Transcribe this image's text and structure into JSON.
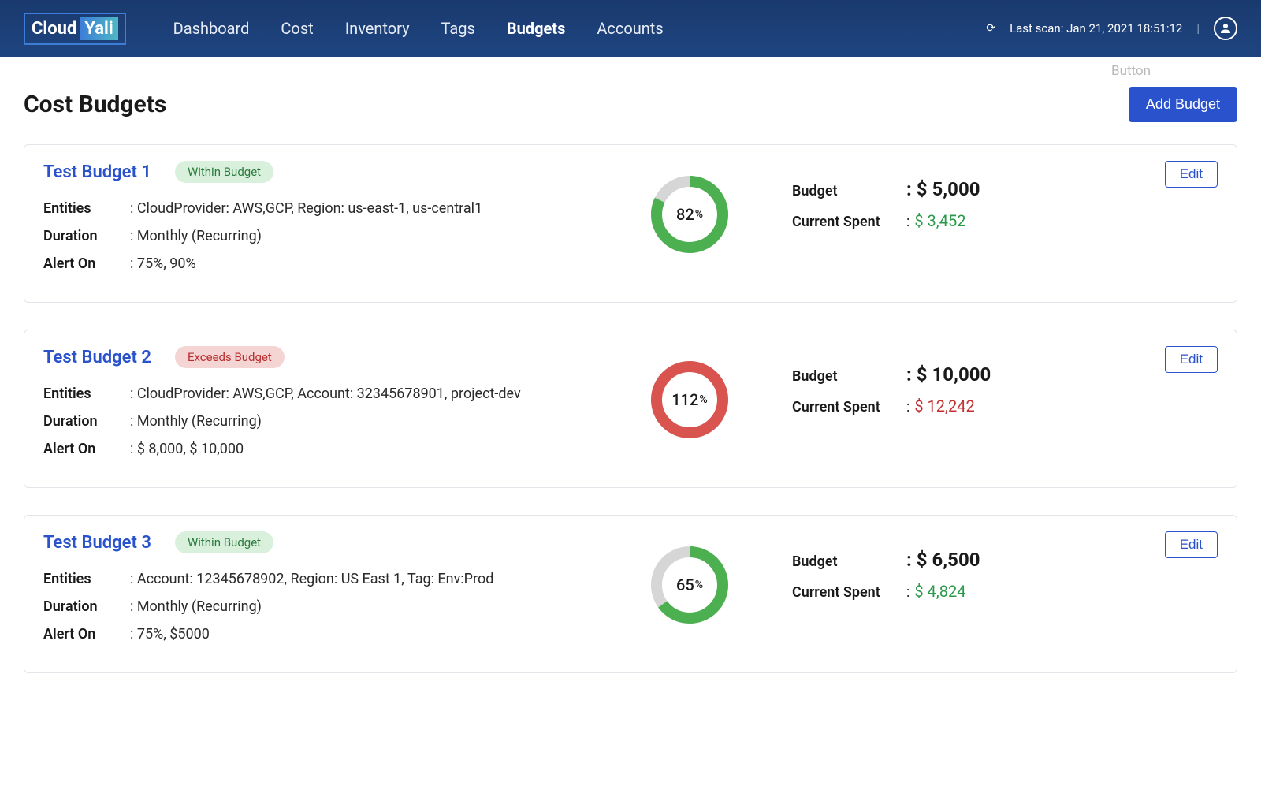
{
  "header": {
    "logo_left": "Cloud",
    "logo_right": "Yali",
    "nav": [
      "Dashboard",
      "Cost",
      "Inventory",
      "Tags",
      "Budgets",
      "Accounts"
    ],
    "active_nav_index": 4,
    "last_scan_prefix": "Last scan: ",
    "last_scan_value": "Jan 21, 2021 18:51:12",
    "ghost_button": "Button"
  },
  "page": {
    "title": "Cost Budgets",
    "add_button": "Add Budget",
    "edit_button": "Edit"
  },
  "colors": {
    "header_bg_top": "#1a3a6e",
    "header_bg_bottom": "#1e4480",
    "primary_blue": "#2952cc",
    "green": "#4caf50",
    "red": "#d9534f",
    "donut_track": "#d6d6d6",
    "badge_within_bg": "#d9f0dd",
    "badge_within_text": "#2a7a3a",
    "badge_exceeds_bg": "#f5d4d4",
    "badge_exceeds_text": "#b82c2c",
    "spent_green": "#2a9a4a",
    "spent_red": "#c43030",
    "card_border": "#e2e5ea"
  },
  "donut": {
    "radius": 42,
    "stroke_width": 14,
    "svg_size": 100
  },
  "labels": {
    "entities": "Entities",
    "duration": "Duration",
    "alert_on": "Alert On",
    "budget": "Budget",
    "current_spent": "Current Spent"
  },
  "budgets": [
    {
      "name": "Test Budget 1",
      "status": "Within Budget",
      "status_type": "within",
      "entities": "CloudProvider: AWS,GCP, Region: us-east-1, us-central1",
      "duration": "Monthly  (Recurring)",
      "alert_on": "75%, 90%",
      "percent": 82,
      "donut_color": "#4caf50",
      "budget_amount": "$ 5,000",
      "current_spent": "$ 3,452",
      "spent_color_class": "right-value-spent-green"
    },
    {
      "name": "Test Budget 2",
      "status": "Exceeds Budget",
      "status_type": "exceeds",
      "entities": "CloudProvider: AWS,GCP, Account: 32345678901, project-dev",
      "duration": "Monthly  (Recurring)",
      "alert_on": "$ 8,000, $ 10,000",
      "percent": 112,
      "donut_color": "#d9534f",
      "budget_amount": "$ 10,000",
      "current_spent": "$ 12,242",
      "spent_color_class": "right-value-spent-red"
    },
    {
      "name": "Test Budget 3",
      "status": "Within Budget",
      "status_type": "within",
      "entities": " Account: 12345678902, Region: US East 1, Tag: Env:Prod",
      "duration": "Monthly  (Recurring)",
      "alert_on": "75%, $5000",
      "percent": 65,
      "donut_color": "#4caf50",
      "budget_amount": "$ 6,500",
      "current_spent": "$ 4,824",
      "spent_color_class": "right-value-spent-green"
    }
  ]
}
